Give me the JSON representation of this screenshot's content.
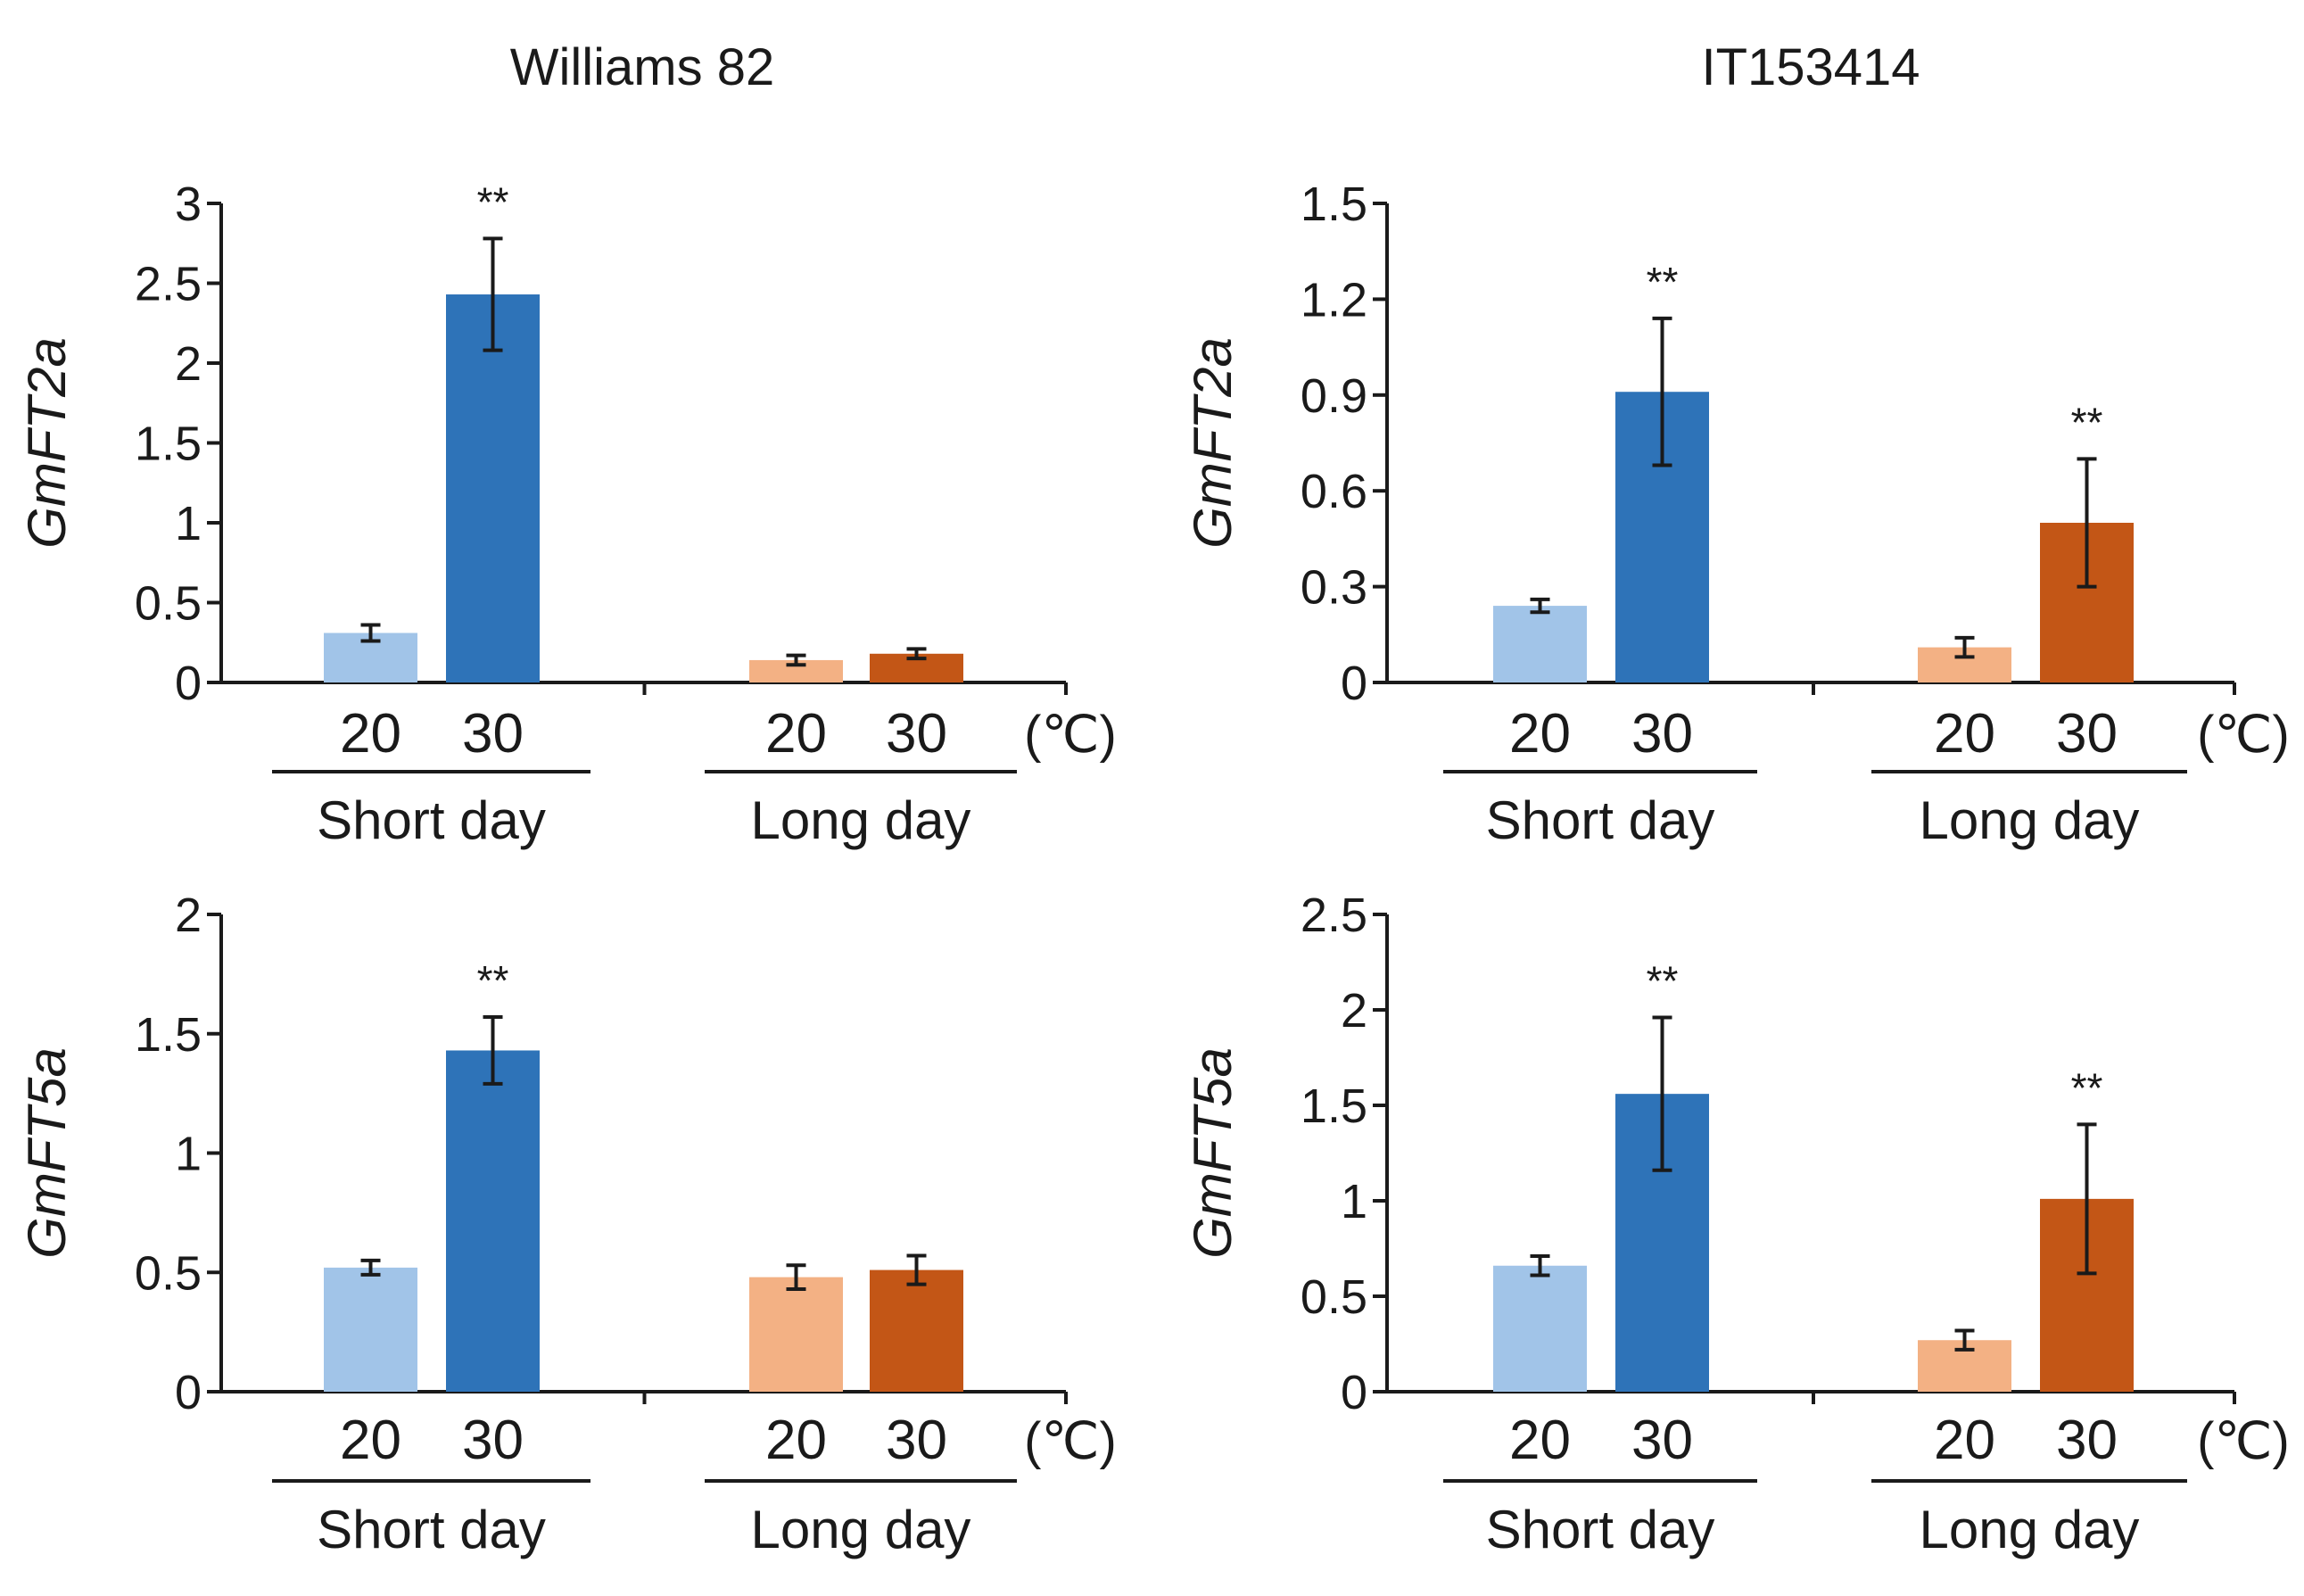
{
  "colors": {
    "light_blue": "#a1c4e8",
    "dark_blue": "#2e73b8",
    "light_orange": "#f3b184",
    "dark_orange": "#c35616",
    "axis": "#1a1a1a"
  },
  "columns": [
    {
      "title": "Williams 82"
    },
    {
      "title": "IT153414"
    }
  ],
  "chart_data": [
    {
      "type": "bar",
      "column": 0,
      "row": 0,
      "title": "Williams 82",
      "ylabel": "GmFT2a",
      "ylim": [
        0,
        3
      ],
      "yticks": [
        "0",
        "0.5",
        "1",
        "1.5",
        "2",
        "2.5",
        "3"
      ],
      "ytick_values": [
        0,
        0.5,
        1,
        1.5,
        2,
        2.5,
        3
      ],
      "unit_label": "(℃)",
      "groups": [
        {
          "name": "Short day",
          "categories": [
            "20",
            "30"
          ],
          "values": [
            0.31,
            2.43
          ],
          "errors": [
            0.05,
            0.35
          ],
          "significance": [
            "",
            "**"
          ],
          "colors": [
            "#a1c4e8",
            "#2e73b8"
          ]
        },
        {
          "name": "Long day",
          "categories": [
            "20",
            "30"
          ],
          "values": [
            0.14,
            0.18
          ],
          "errors": [
            0.03,
            0.03
          ],
          "significance": [
            "",
            ""
          ],
          "colors": [
            "#f3b184",
            "#c35616"
          ]
        }
      ]
    },
    {
      "type": "bar",
      "column": 1,
      "row": 0,
      "title": "IT153414",
      "ylabel": "GmFT2a",
      "ylim": [
        0,
        1.5
      ],
      "yticks": [
        "0",
        "0.3",
        "0.6",
        "0.9",
        "1.2",
        "1.5"
      ],
      "ytick_values": [
        0,
        0.3,
        0.6,
        0.9,
        1.2,
        1.5
      ],
      "unit_label": "(℃)",
      "groups": [
        {
          "name": "Short day",
          "categories": [
            "20",
            "30"
          ],
          "values": [
            0.24,
            0.91
          ],
          "errors": [
            0.02,
            0.23
          ],
          "significance": [
            "",
            "**"
          ],
          "colors": [
            "#a1c4e8",
            "#2e73b8"
          ]
        },
        {
          "name": "Long day",
          "categories": [
            "20",
            "30"
          ],
          "values": [
            0.11,
            0.5
          ],
          "errors": [
            0.03,
            0.2
          ],
          "significance": [
            "",
            "**"
          ],
          "colors": [
            "#f3b184",
            "#c35616"
          ]
        }
      ]
    },
    {
      "type": "bar",
      "column": 0,
      "row": 1,
      "title": "",
      "ylabel": "GmFT5a",
      "ylim": [
        0,
        2
      ],
      "yticks": [
        "0",
        "0.5",
        "1",
        "1.5",
        "2"
      ],
      "ytick_values": [
        0,
        0.5,
        1,
        1.5,
        2
      ],
      "unit_label": "(℃)",
      "groups": [
        {
          "name": "Short day",
          "categories": [
            "20",
            "30"
          ],
          "values": [
            0.52,
            1.43
          ],
          "errors": [
            0.03,
            0.14
          ],
          "significance": [
            "",
            "**"
          ],
          "colors": [
            "#a1c4e8",
            "#2e73b8"
          ]
        },
        {
          "name": "Long day",
          "categories": [
            "20",
            "30"
          ],
          "values": [
            0.48,
            0.51
          ],
          "errors": [
            0.05,
            0.06
          ],
          "significance": [
            "",
            ""
          ],
          "colors": [
            "#f3b184",
            "#c35616"
          ]
        }
      ]
    },
    {
      "type": "bar",
      "column": 1,
      "row": 1,
      "title": "",
      "ylabel": "GmFT5a",
      "ylim": [
        0,
        2.5
      ],
      "yticks": [
        "0",
        "0.5",
        "1",
        "1.5",
        "2",
        "2.5"
      ],
      "ytick_values": [
        0,
        0.5,
        1,
        1.5,
        2,
        2.5
      ],
      "unit_label": "(℃)",
      "groups": [
        {
          "name": "Short day",
          "categories": [
            "20",
            "30"
          ],
          "values": [
            0.66,
            1.56
          ],
          "errors": [
            0.05,
            0.4
          ],
          "significance": [
            "",
            "**"
          ],
          "colors": [
            "#a1c4e8",
            "#2e73b8"
          ]
        },
        {
          "name": "Long day",
          "categories": [
            "20",
            "30"
          ],
          "values": [
            0.27,
            1.01
          ],
          "errors": [
            0.05,
            0.39
          ],
          "significance": [
            "",
            "**"
          ],
          "colors": [
            "#f3b184",
            "#c35616"
          ]
        }
      ]
    }
  ]
}
